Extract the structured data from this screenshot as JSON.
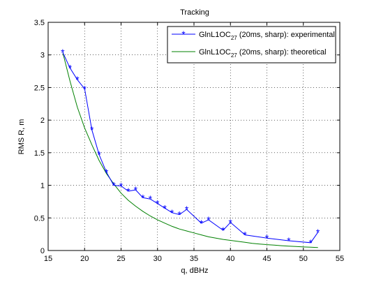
{
  "chart_data": {
    "type": "line",
    "title": "Tracking",
    "xlabel": "q, dBHz",
    "ylabel": "RMS R, m",
    "xlim": [
      15,
      55
    ],
    "ylim": [
      0,
      3.5
    ],
    "xticks": [
      15,
      20,
      25,
      30,
      35,
      40,
      45,
      50,
      55
    ],
    "yticks": [
      0,
      0.5,
      1,
      1.5,
      2,
      2.5,
      3,
      3.5
    ],
    "xtick_labels": [
      "15",
      "20",
      "25",
      "30",
      "35",
      "40",
      "45",
      "50",
      "55"
    ],
    "ytick_labels": [
      "0",
      "0.5",
      "1",
      "1.5",
      "2",
      "2.5",
      "3",
      "3.5"
    ],
    "grid": true,
    "legend_position": "top-right",
    "series": [
      {
        "name_main": "GlnL1OC",
        "name_sub": "27",
        "name_rest": " (20ms, sharp): experimental",
        "color": "#0000ff",
        "marker": "asterisk",
        "x": [
          17,
          18,
          19,
          20,
          21,
          22,
          23,
          24,
          25,
          26,
          27,
          28,
          29,
          30,
          31,
          32,
          33,
          34,
          36,
          37,
          39,
          40,
          42,
          45,
          48,
          51,
          52
        ],
        "y": [
          3.04,
          2.8,
          2.62,
          2.48,
          1.85,
          1.47,
          1.2,
          1.0,
          0.99,
          0.91,
          0.93,
          0.81,
          0.79,
          0.72,
          0.65,
          0.58,
          0.55,
          0.63,
          0.42,
          0.47,
          0.31,
          0.43,
          0.24,
          0.19,
          0.15,
          0.12,
          0.28
        ]
      },
      {
        "name_main": "GlnL1OC",
        "name_sub": "27",
        "name_rest": " (20ms, sharp): theoretical",
        "color": "#008000",
        "marker": "none",
        "x": [
          17,
          18,
          19,
          20,
          21,
          22,
          23,
          24,
          25,
          26,
          27,
          28,
          29,
          30,
          31,
          32,
          33,
          34,
          35,
          36,
          37,
          38,
          39,
          40,
          41,
          42,
          43,
          44,
          45,
          46,
          47,
          48,
          49,
          50,
          51,
          52
        ],
        "y": [
          3.04,
          2.6,
          2.2,
          1.88,
          1.62,
          1.38,
          1.18,
          1.02,
          0.88,
          0.77,
          0.68,
          0.6,
          0.53,
          0.47,
          0.42,
          0.37,
          0.33,
          0.3,
          0.27,
          0.24,
          0.21,
          0.19,
          0.17,
          0.155,
          0.14,
          0.125,
          0.11,
          0.1,
          0.09,
          0.082,
          0.074,
          0.067,
          0.061,
          0.055,
          0.05,
          0.046
        ]
      }
    ]
  }
}
